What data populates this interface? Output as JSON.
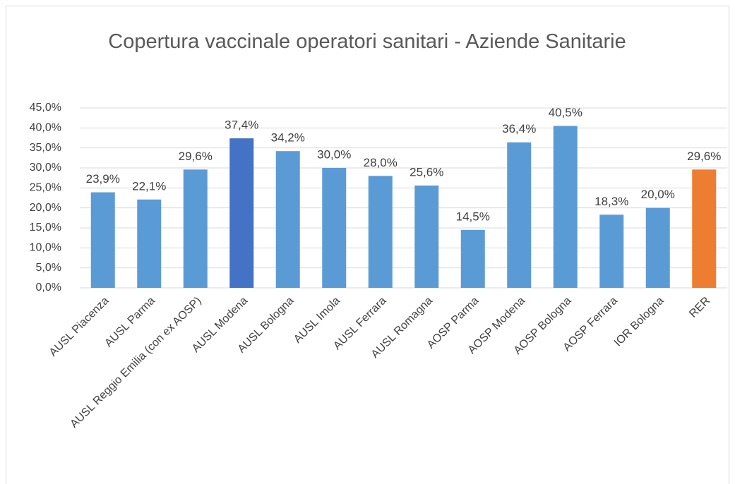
{
  "chart_data": {
    "type": "bar",
    "title": "Copertura vaccinale operatori sanitari - Aziende Sanitarie",
    "categories": [
      "AUSL Piacenza",
      "AUSL Parma",
      "AUSL Reggio Emilia (con ex AOSP)",
      "AUSL Modena",
      "AUSL Bologna",
      "AUSL Imola",
      "AUSL Ferrara",
      "AUSL Romagna",
      "AOSP Parma",
      "AOSP Modena",
      "AOSP Bologna",
      "AOSP Ferrara",
      "IOR Bologna",
      "RER"
    ],
    "values": [
      23.9,
      22.1,
      29.6,
      37.4,
      34.2,
      30.0,
      28.0,
      25.6,
      14.5,
      36.4,
      40.5,
      18.3,
      20.0,
      29.6
    ],
    "value_labels": [
      "23,9%",
      "22,1%",
      "29,6%",
      "37,4%",
      "34,2%",
      "30,0%",
      "28,0%",
      "25,6%",
      "14,5%",
      "36,4%",
      "40,5%",
      "18,3%",
      "20,0%",
      "29,6%"
    ],
    "colors": [
      "#5b9bd5",
      "#5b9bd5",
      "#5b9bd5",
      "#4472c4",
      "#5b9bd5",
      "#5b9bd5",
      "#5b9bd5",
      "#5b9bd5",
      "#5b9bd5",
      "#5b9bd5",
      "#5b9bd5",
      "#5b9bd5",
      "#5b9bd5",
      "#ed7d31"
    ],
    "ylim": [
      0,
      45
    ],
    "yticks": [
      {
        "value": 0,
        "label": "0,0%"
      },
      {
        "value": 5,
        "label": "5,0%"
      },
      {
        "value": 10,
        "label": "10,0%"
      },
      {
        "value": 15,
        "label": "15,0%"
      },
      {
        "value": 20,
        "label": "20,0%"
      },
      {
        "value": 25,
        "label": "25,0%"
      },
      {
        "value": 30,
        "label": "30,0%"
      },
      {
        "value": 35,
        "label": "35,0%"
      },
      {
        "value": 40,
        "label": "40,0%"
      },
      {
        "value": 45,
        "label": "45,0%"
      }
    ],
    "grid": true
  }
}
